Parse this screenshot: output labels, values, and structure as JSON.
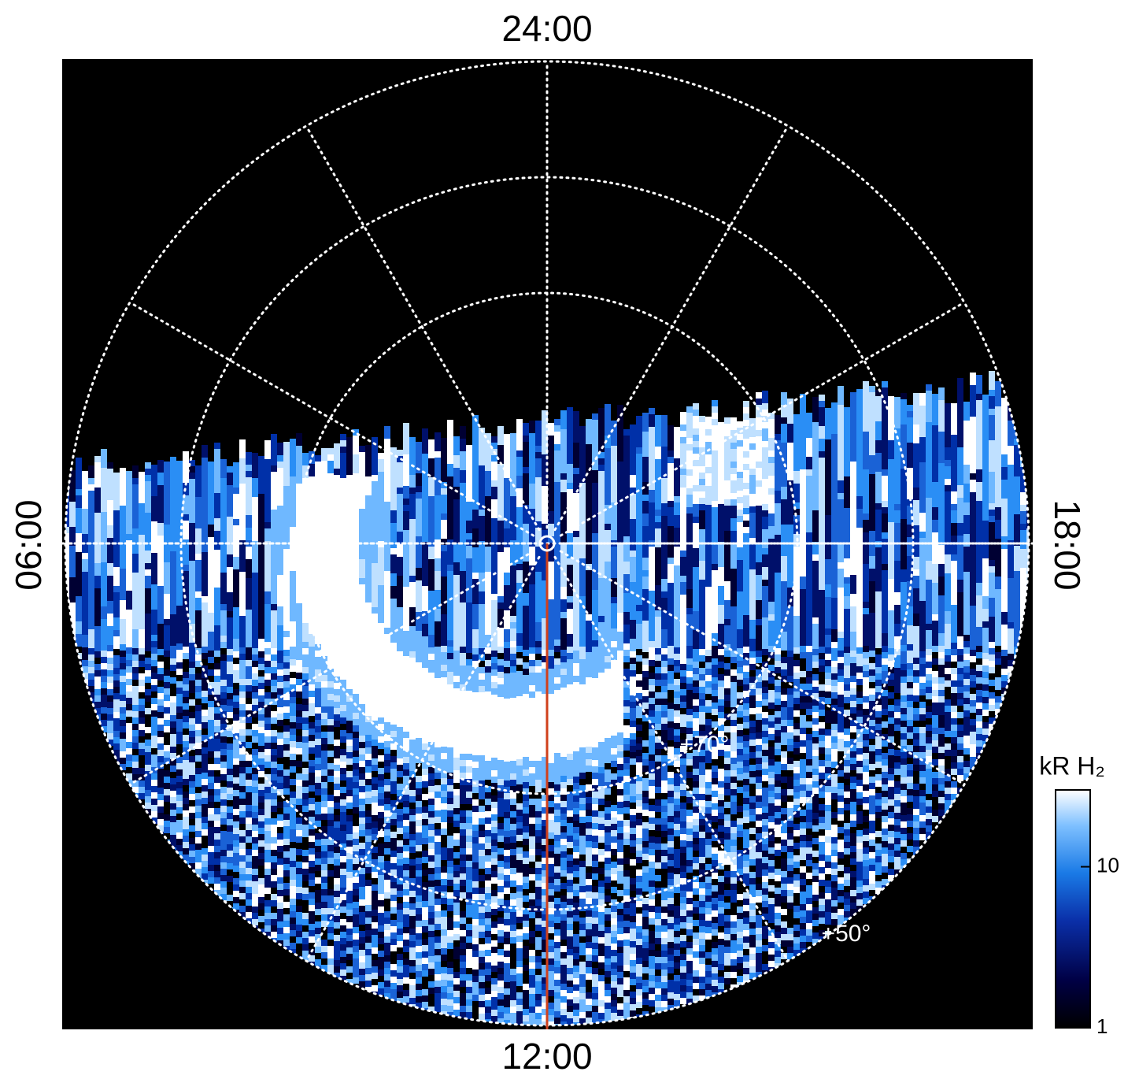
{
  "hour_labels": {
    "top": "24:00",
    "bottom": "12:00",
    "left": "06:00",
    "right": "18:00"
  },
  "latitude_labels": [
    "+70°",
    "+50°"
  ],
  "colorbar": {
    "title": "kR H₂",
    "scale": "log",
    "lim": [
      1,
      30
    ],
    "ticks": [
      1,
      10
    ]
  }
}
